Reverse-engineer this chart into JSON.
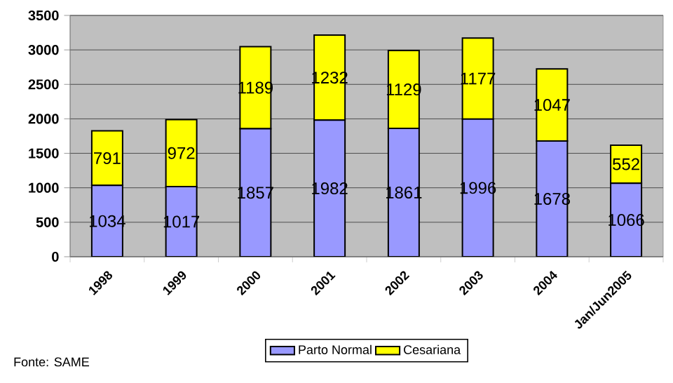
{
  "chart_data": {
    "type": "bar",
    "stacked": true,
    "categories": [
      "1998",
      "1999",
      "2000",
      "2001",
      "2002",
      "2003",
      "2004",
      "Jan/Jun2005"
    ],
    "series": [
      {
        "name": "Parto Normal",
        "color": "#9999ff",
        "values": [
          1034,
          1017,
          1857,
          1982,
          1861,
          1996,
          1678,
          1066
        ]
      },
      {
        "name": "Cesariana",
        "color": "#ffff00",
        "values": [
          791,
          972,
          1189,
          1232,
          1129,
          1177,
          1047,
          552
        ]
      }
    ],
    "ylim": [
      0,
      3500
    ],
    "yticks": [
      0,
      500,
      1000,
      1500,
      2000,
      2500,
      3000,
      3500
    ],
    "grid": "y",
    "legend": "bottom",
    "data_labels": true,
    "annotations": [
      "Fonte: SAME"
    ]
  }
}
